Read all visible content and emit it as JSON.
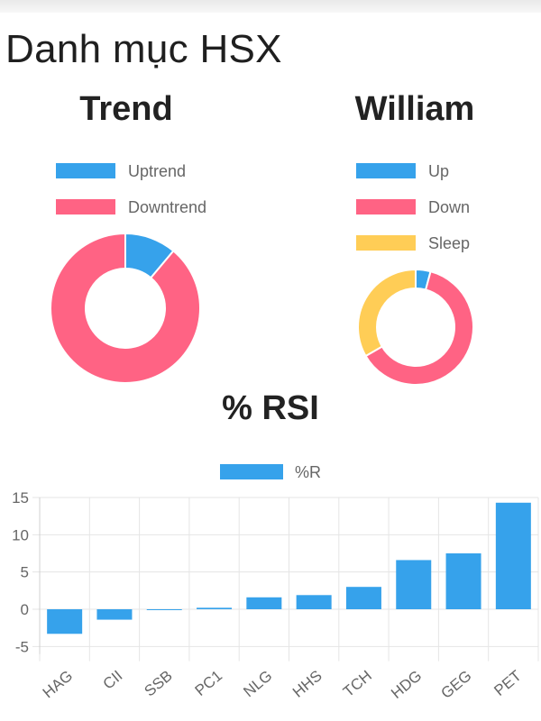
{
  "page": {
    "title": "Danh mục HSX"
  },
  "colors": {
    "blue": "#36a2eb",
    "pink": "#ff6384",
    "yellow": "#ffcd56",
    "grid": "#e5e5e5",
    "axis_text": "#666666"
  },
  "chart_data": [
    {
      "type": "pie",
      "variant": "doughnut",
      "title": "Trend",
      "labels": [
        "Uptrend",
        "Downtrend"
      ],
      "values": [
        1,
        8
      ],
      "colors": [
        "#36a2eb",
        "#ff6384"
      ],
      "legend": "top"
    },
    {
      "type": "pie",
      "variant": "doughnut",
      "title": "William",
      "labels": [
        "Up",
        "Down",
        "Sleep"
      ],
      "values": [
        1,
        15,
        8
      ],
      "colors": [
        "#36a2eb",
        "#ff6384",
        "#ffcd56"
      ],
      "legend": "top"
    },
    {
      "type": "bar",
      "title": "% RSI",
      "categories": [
        "HAG",
        "CII",
        "SSB",
        "PC1",
        "NLG",
        "HHS",
        "TCH",
        "HDG",
        "GEG",
        "PET"
      ],
      "series": [
        {
          "name": "%R",
          "values": [
            -3.3,
            -1.4,
            0,
            0.2,
            1.6,
            1.9,
            3.0,
            6.6,
            7.5,
            14.3
          ],
          "color": "#36a2eb"
        }
      ],
      "yticks": [
        15,
        10,
        5,
        0,
        -5
      ],
      "ylim": [
        -6,
        15
      ],
      "grid": true,
      "legend": "top"
    }
  ]
}
